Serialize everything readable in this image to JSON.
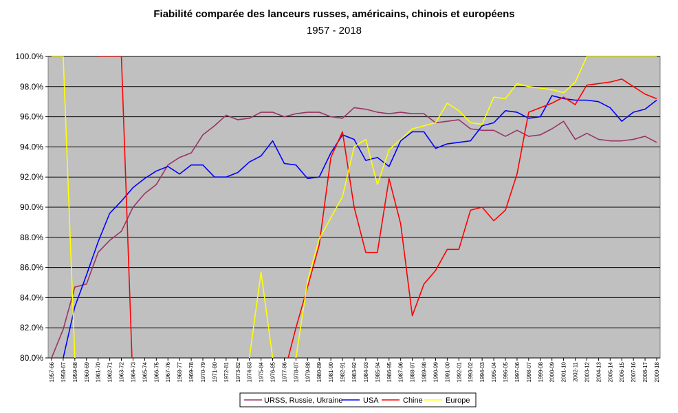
{
  "chart_data": {
    "type": "line",
    "title": "Fiabilité comparée des lanceurs russes, américains, chinois et européens",
    "subtitle": "1957 - 2018",
    "ylim": [
      80,
      100
    ],
    "yticks": [
      "80.0%",
      "82.0%",
      "84.0%",
      "86.0%",
      "88.0%",
      "90.0%",
      "92.0%",
      "94.0%",
      "96.0%",
      "98.0%",
      "100.0%"
    ],
    "grid": true,
    "legend_position": "bottom",
    "background_color": "#c0c0c0",
    "categories": [
      "1957-66",
      "1958-67",
      "1959-68",
      "1960-69",
      "1961-70",
      "1962-71",
      "1963-72",
      "1964-73",
      "1965-74",
      "1966-75",
      "1967-76",
      "1968-77",
      "1969-78",
      "1970-79",
      "1971-80",
      "1972-81",
      "1973-82",
      "1974-83",
      "1975-84",
      "1976-85",
      "1977-86",
      "1978-87",
      "1979-88",
      "1980-89",
      "1981-90",
      "1982-91",
      "1983-92",
      "1984-93",
      "1985-94",
      "1986-95",
      "1987-96",
      "1988-97",
      "1989-98",
      "1990-99",
      "1991-00",
      "1992-01",
      "1993-02",
      "1994-03",
      "1995-04",
      "1996-05",
      "1997-06",
      "1998-07",
      "1999-08",
      "2000-09",
      "2001-10",
      "2002-11",
      "2003-12",
      "2004-13",
      "2005-14",
      "2006-15",
      "2007-16",
      "2008-17",
      "2009-18"
    ],
    "series": [
      {
        "name": "URSS, Russie, Ukraine",
        "color": "#993366",
        "values": [
          80.0,
          81.9,
          84.7,
          84.9,
          87.0,
          87.8,
          88.4,
          90.0,
          90.9,
          91.5,
          92.8,
          93.3,
          93.6,
          94.8,
          95.4,
          96.1,
          95.8,
          95.9,
          96.3,
          96.3,
          96.0,
          96.2,
          96.3,
          96.3,
          96.0,
          95.9,
          96.6,
          96.5,
          96.3,
          96.2,
          96.3,
          96.2,
          96.2,
          95.6,
          95.7,
          95.8,
          95.2,
          95.1,
          95.1,
          94.7,
          95.1,
          94.7,
          94.8,
          95.2,
          95.7,
          94.5,
          94.9,
          94.5,
          94.4,
          94.4,
          94.5,
          94.7,
          94.3
        ]
      },
      {
        "name": "USA",
        "color": "#0000ff",
        "values": [
          78.0,
          80.0,
          83.4,
          85.5,
          87.7,
          89.6,
          90.4,
          91.3,
          91.9,
          92.4,
          92.7,
          92.2,
          92.8,
          92.8,
          92.0,
          92.0,
          92.3,
          93.0,
          93.4,
          94.4,
          92.9,
          92.8,
          91.9,
          92.0,
          93.6,
          94.8,
          94.5,
          93.1,
          93.3,
          92.7,
          94.4,
          95.0,
          95.0,
          93.9,
          94.2,
          94.3,
          94.4,
          95.4,
          95.6,
          96.4,
          96.3,
          95.9,
          96.0,
          97.4,
          97.2,
          97.1,
          97.1,
          97.0,
          96.6,
          95.7,
          96.3,
          96.5,
          97.1
        ]
      },
      {
        "name": "Chine",
        "color": "#ff0000",
        "values": [
          null,
          null,
          null,
          null,
          100,
          100,
          100,
          78,
          null,
          null,
          null,
          null,
          null,
          null,
          null,
          null,
          null,
          null,
          null,
          null,
          79,
          82,
          84.7,
          87.5,
          93.3,
          95.0,
          90.0,
          87.0,
          87.0,
          91.9,
          88.9,
          82.8,
          84.9,
          85.8,
          87.2,
          87.2,
          89.8,
          90.0,
          89.1,
          89.8,
          92.2,
          96.3,
          96.6,
          96.9,
          97.3,
          96.8,
          98.1,
          98.2,
          98.3,
          98.5,
          98.0,
          97.5,
          97.2
        ]
      },
      {
        "name": "Europe",
        "color": "#ffff00",
        "values": [
          100,
          100,
          80,
          null,
          null,
          null,
          null,
          null,
          null,
          null,
          null,
          null,
          null,
          null,
          null,
          null,
          null,
          80,
          85.7,
          80,
          78,
          80,
          85.1,
          87.9,
          89.3,
          90.7,
          94.0,
          94.5,
          91.5,
          93.8,
          94.5,
          95.2,
          95.4,
          95.6,
          96.9,
          96.4,
          95.6,
          95.5,
          97.3,
          97.2,
          98.2,
          98.0,
          97.9,
          97.8,
          97.6,
          98.3,
          100,
          100,
          100,
          100,
          100,
          100,
          100
        ]
      }
    ]
  }
}
